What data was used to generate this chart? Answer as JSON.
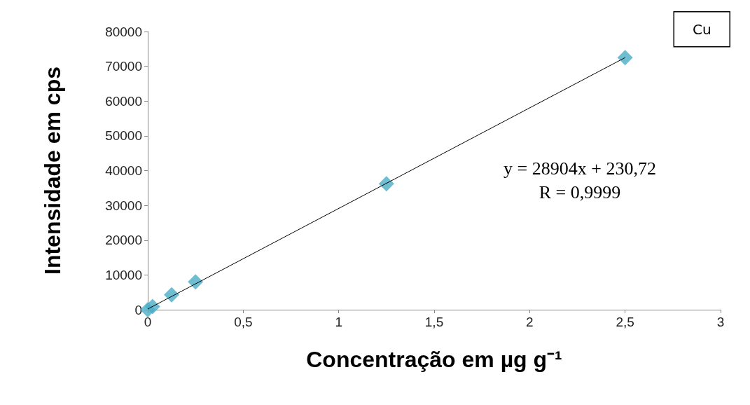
{
  "chart_data": {
    "type": "scatter",
    "title": "Cu",
    "xlabel": "Concentração em µg g⁻¹",
    "ylabel": "Intensidade em cps",
    "annotations": [
      "y = 28904x + 230,72\nR = 0,9999"
    ],
    "series": [
      {
        "color": "#4bacc6",
        "marker": "diamond",
        "x": [
          0,
          0.025,
          0.125,
          0.25,
          1.25,
          2.5
        ],
        "values": [
          0,
          900,
          4300,
          8000,
          36200,
          72500
        ]
      },
      {
        "type": "line",
        "color": "#000000",
        "marker": "none",
        "x": [
          0,
          2.5
        ],
        "values": [
          200,
          72500
        ]
      }
    ],
    "xlim": [
      0,
      3
    ],
    "xticks": [
      0,
      {
        "value": 0.5,
        "label": "0,5"
      },
      1,
      {
        "value": 1.5,
        "label": "1,5"
      },
      2,
      {
        "value": 2.5,
        "label": "2,5"
      },
      3
    ],
    "ylim": [
      0,
      80000
    ],
    "yticks": [
      0,
      10000,
      20000,
      30000,
      40000,
      50000,
      60000,
      70000,
      80000
    ],
    "grid": false
  }
}
